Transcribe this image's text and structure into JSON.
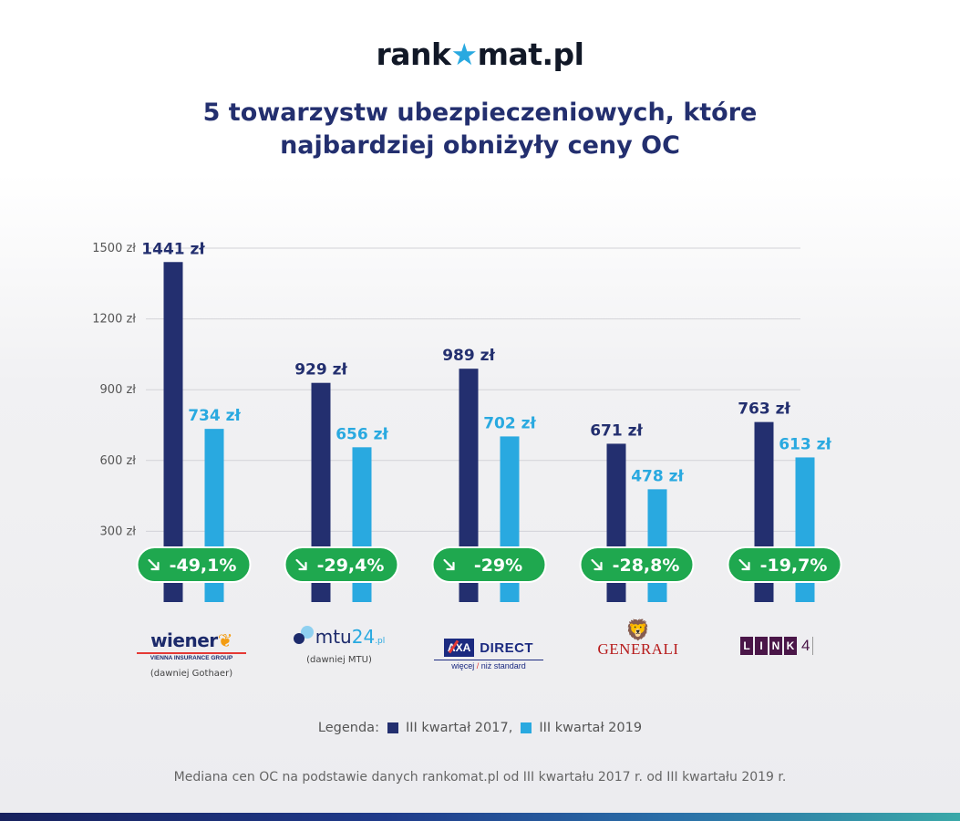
{
  "logo": {
    "text_before": "rank",
    "star": "★",
    "text_after": "mat.pl"
  },
  "title": {
    "line1": "5 towarzystw ubezpieczeniowych, które",
    "line2": "najbardziej obniżyły ceny OC"
  },
  "colors": {
    "series_2017": "#232f6f",
    "series_2019": "#29a9e0",
    "badge": "#1fa84f"
  },
  "chart_data": {
    "type": "bar",
    "title": "5 towarzystw ubezpieczeniowych, które najbardziej obniżyły ceny OC",
    "categories": [
      "Wiener",
      "mtu24.pl",
      "AXA Direct",
      "Generali",
      "Link4"
    ],
    "series": [
      {
        "name": "III kwartał 2017",
        "values": [
          1441,
          929,
          989,
          671,
          763
        ],
        "labels": [
          "1441 zł",
          "929 zł",
          "989 zł",
          "671 zł",
          "763 zł"
        ]
      },
      {
        "name": "III kwartał 2019",
        "values": [
          734,
          656,
          702,
          478,
          613
        ],
        "labels": [
          "734 zł",
          "656 zł",
          "702 zł",
          "478 zł",
          "613 zł"
        ]
      }
    ],
    "changes": [
      "-49,1%",
      "-29,4%",
      "-29%",
      "-28,8%",
      "-19,7%"
    ],
    "change_icon": "arrow-down-right-icon",
    "yticks": [
      300,
      600,
      900,
      1200,
      1500
    ],
    "ytick_labels": [
      "300 zł",
      "600 zł",
      "900 zł",
      "1200 zł",
      "1500 zł"
    ],
    "ylim": [
      0,
      1500
    ],
    "grid": true
  },
  "brands": {
    "wiener": {
      "name": "wiener",
      "tagline": "VIENNA INSURANCE GROUP",
      "note": "(dawniej Gothaer)"
    },
    "mtu": {
      "name": "mtu",
      "num": "24",
      "suffix": ".pl",
      "note": "(dawniej MTU)"
    },
    "axa": {
      "box": "AXA",
      "name": "DIRECT",
      "tag_a": "więcej",
      "tag_b": "niż standard"
    },
    "generali": {
      "name": "GENERALI",
      "icon": "winged-lion-icon"
    },
    "link4": {
      "letters": [
        "L",
        "I",
        "N",
        "K"
      ],
      "num": "4"
    }
  },
  "legend": {
    "label": "Legenda:",
    "item1": "III kwartał 2017,",
    "item2": "III kwartał 2019"
  },
  "footnote": "Mediana cen OC na podstawie danych rankomat.pl od III kwartału 2017 r. od III kwartału 2019 r."
}
